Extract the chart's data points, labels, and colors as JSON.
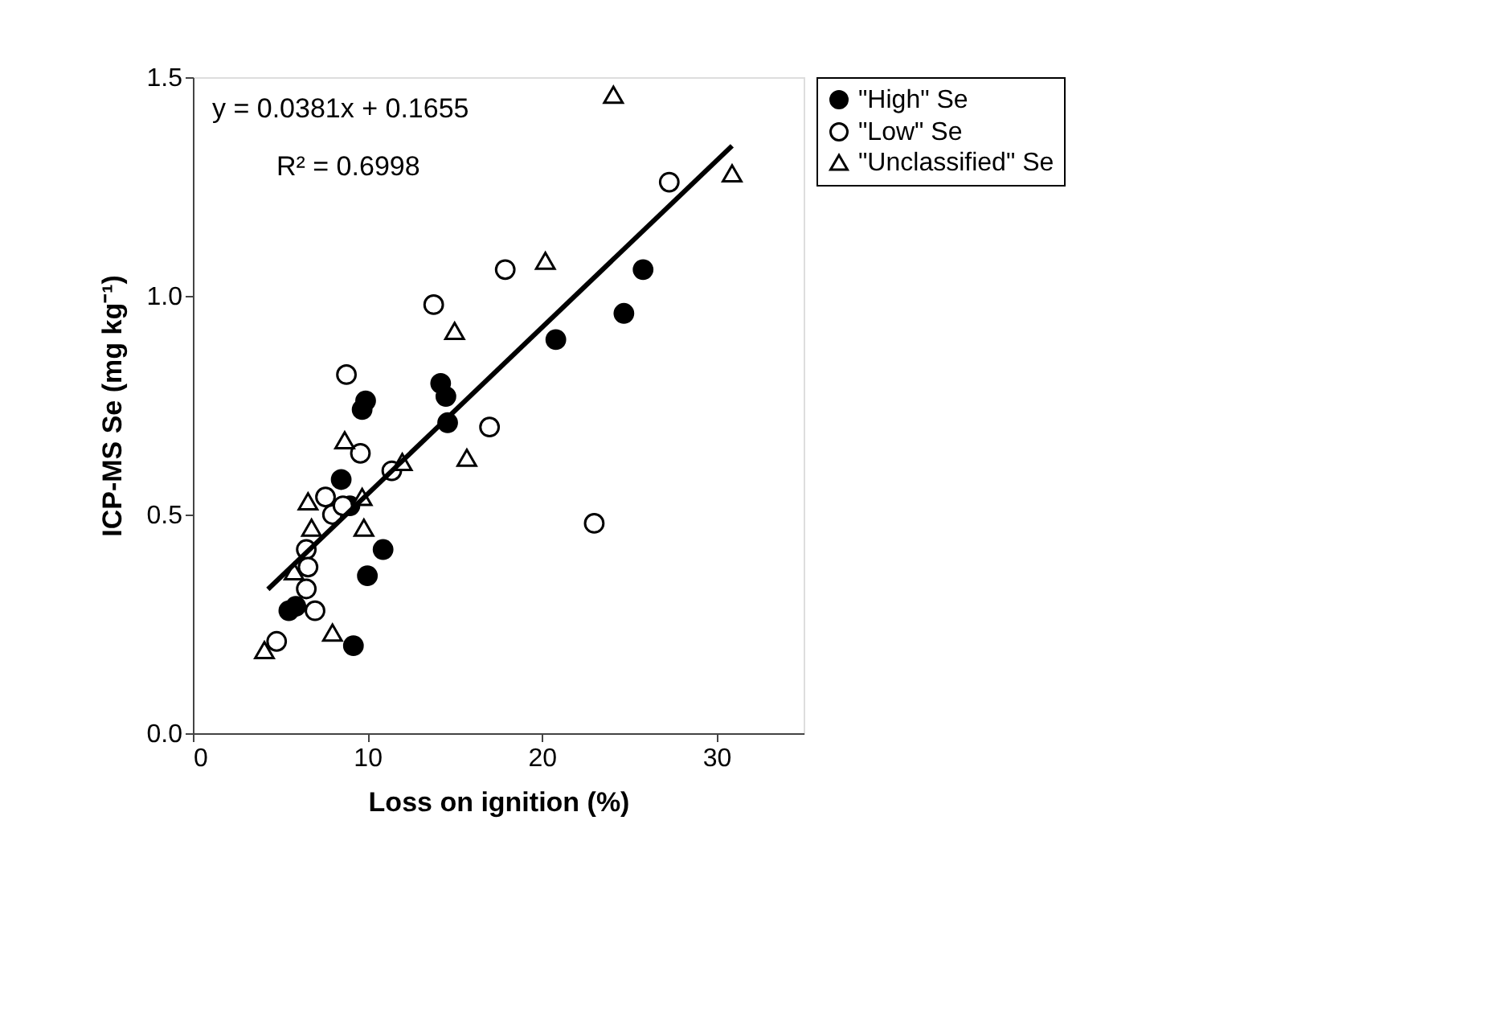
{
  "chart_data": {
    "type": "scatter",
    "xlabel": "Loss on ignition (%)",
    "ylabel": "ICP-MS Se (mg kg⁻¹)",
    "xlim": [
      0,
      35
    ],
    "xticks": [
      0,
      10,
      20,
      30
    ],
    "ylim": [
      0,
      1.5
    ],
    "yticks": [
      {
        "value": 0,
        "label": "0.0"
      },
      {
        "value": 0.5,
        "label": "0.5"
      },
      {
        "value": 1,
        "label": "1.0"
      },
      {
        "value": 1.5,
        "label": "1.5"
      }
    ],
    "grid": false,
    "legend": "right",
    "annotations": [
      "y = 0.0381x + 0.1655",
      "R² = 0.6998"
    ],
    "series": [
      {
        "name": "\"High\" Se",
        "color": "#000000",
        "marker": "circle",
        "x": [
          5.5,
          5.9,
          9.2,
          8.5,
          9.0,
          9.7,
          9.9,
          10.0,
          10.9,
          14.2,
          14.5,
          14.6,
          20.8,
          24.7,
          25.8
        ],
        "values": [
          0.28,
          0.29,
          0.2,
          0.58,
          0.52,
          0.74,
          0.76,
          0.36,
          0.42,
          0.8,
          0.77,
          0.71,
          0.9,
          0.96,
          1.06
        ]
      },
      {
        "name": "\"Low\" Se",
        "color": "#ffffff",
        "marker": "circle",
        "x": [
          4.8,
          6.5,
          6.5,
          6.6,
          7.0,
          7.6,
          8.0,
          8.8,
          8.6,
          9.6,
          11.4,
          13.8,
          17.0,
          17.9,
          23.0,
          27.3
        ],
        "values": [
          0.21,
          0.33,
          0.42,
          0.38,
          0.28,
          0.54,
          0.5,
          0.82,
          0.52,
          0.64,
          0.6,
          0.98,
          0.7,
          1.06,
          0.48,
          1.26
        ]
      },
      {
        "name": "\"Unclassified\" Se",
        "color": "#ffffff",
        "marker": "triangle",
        "x": [
          4.1,
          5.8,
          6.6,
          6.8,
          8.0,
          8.7,
          9.7,
          9.8,
          12.0,
          15.0,
          15.7,
          20.2,
          24.1,
          30.9
        ],
        "values": [
          0.19,
          0.37,
          0.53,
          0.47,
          0.23,
          0.67,
          0.54,
          0.47,
          0.62,
          0.92,
          0.63,
          1.08,
          1.46,
          1.28
        ]
      },
      {
        "type": "line",
        "color": "#000000",
        "marker": "none",
        "line_style": "solid",
        "x": [
          4.3,
          30.9
        ],
        "values": [
          0.329,
          1.343
        ]
      }
    ]
  }
}
